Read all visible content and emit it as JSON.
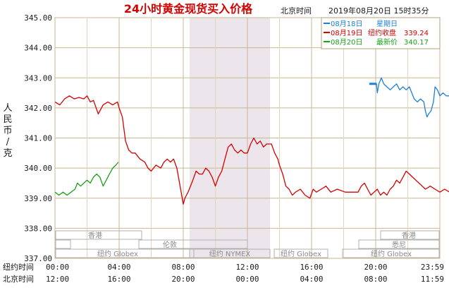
{
  "header": {
    "title": "24小时黄金现货买入价格",
    "location": "北京时间",
    "datetime": "2019年08月20日 15时35分"
  },
  "y_axis_label_chars": [
    "人",
    "民",
    "币",
    "/",
    "克"
  ],
  "legend": {
    "rows": [
      {
        "date_label": "08月18日",
        "info_label": "星期日",
        "value": "",
        "color": "#1e7fd6"
      },
      {
        "date_label": "08月19日",
        "info_label": "纽约收盘",
        "value": "339.24",
        "color": "#d40000"
      },
      {
        "date_label": "08月20日",
        "info_label": "最新价",
        "value": "340.17",
        "color": "#1aa01a"
      }
    ]
  },
  "time_rows": {
    "ny_label": "纽约时间",
    "bj_label": "北京时间",
    "ny_ticks": [
      "00:00",
      "04:00",
      "08:00",
      "12:00",
      "16:00",
      "20:00",
      "23:59"
    ],
    "bj_ticks": [
      "12:00",
      "16:00",
      "20:00",
      "00:00",
      "04:00",
      "08:00",
      "11:59"
    ]
  },
  "market_labels": {
    "hongkong_left": "香港",
    "hongkong_right": "香港",
    "london": "伦敦",
    "sydney": "悉尼",
    "globex_1": "纽约 Globex",
    "nymex": "纽约 NYMEX",
    "globex_2": "纽约 Globex",
    "globex_3": "纽约 Globex"
  },
  "chart_data": {
    "type": "line",
    "title": "24小时黄金现货买入价格",
    "ylabel": "人民币/克",
    "ylim": [
      337.0,
      345.0
    ],
    "yticks": [
      "345.00",
      "344.00",
      "343.00",
      "342.00",
      "341.00",
      "340.00",
      "339.00",
      "338.00",
      "337.00"
    ],
    "xlabel": "北京时间",
    "x_ticks_beijing": [
      "12:00",
      "16:00",
      "20:00",
      "00:00",
      "04:00",
      "08:00",
      "11:59"
    ],
    "grid": true,
    "x_units": "hours since 12:00 Beijing time",
    "series": [
      {
        "name": "08月18日",
        "color": "#1e7fd6",
        "points": [
          [
            19.6,
            342.8
          ],
          [
            20.05,
            342.8
          ],
          [
            20.1,
            342.5
          ],
          [
            20.2,
            342.8
          ],
          [
            20.35,
            343.0
          ],
          [
            20.5,
            342.8
          ],
          [
            20.7,
            342.7
          ],
          [
            20.9,
            342.6
          ],
          [
            21.1,
            342.7
          ],
          [
            21.3,
            342.8
          ],
          [
            21.5,
            342.6
          ],
          [
            21.7,
            342.7
          ],
          [
            21.9,
            342.6
          ],
          [
            22.1,
            342.7
          ],
          [
            22.4,
            342.3
          ],
          [
            22.6,
            342.2
          ],
          [
            22.8,
            342.3
          ],
          [
            23.0,
            342.2
          ],
          [
            23.1,
            341.9
          ],
          [
            23.2,
            341.7
          ],
          [
            23.3,
            341.8
          ],
          [
            23.45,
            341.9
          ],
          [
            23.6,
            342.2
          ],
          [
            23.7,
            342.7
          ],
          [
            23.85,
            342.6
          ],
          [
            24.0,
            342.4
          ],
          [
            24.2,
            342.5
          ],
          [
            24.4,
            342.4
          ],
          [
            24.6,
            342.4
          ],
          [
            24.8,
            342.3
          ],
          [
            25.0,
            342.3
          ],
          [
            25.2,
            342.2
          ]
        ]
      },
      {
        "name": "08月19日",
        "color": "#d40000",
        "points": [
          [
            0.0,
            342.2
          ],
          [
            0.3,
            342.1
          ],
          [
            0.6,
            342.3
          ],
          [
            0.9,
            342.4
          ],
          [
            1.2,
            342.3
          ],
          [
            1.5,
            342.35
          ],
          [
            1.8,
            342.3
          ],
          [
            2.0,
            342.4
          ],
          [
            2.2,
            342.2
          ],
          [
            2.4,
            342.25
          ],
          [
            2.7,
            341.8
          ],
          [
            3.0,
            342.1
          ],
          [
            3.3,
            342.2
          ],
          [
            3.6,
            342.1
          ],
          [
            3.9,
            342.2
          ],
          [
            4.0,
            342.0
          ],
          [
            4.2,
            341.7
          ],
          [
            4.4,
            340.9
          ],
          [
            4.6,
            340.6
          ],
          [
            4.8,
            340.5
          ],
          [
            5.0,
            340.5
          ],
          [
            5.3,
            340.3
          ],
          [
            5.6,
            340.2
          ],
          [
            5.8,
            340.0
          ],
          [
            6.0,
            339.9
          ],
          [
            6.3,
            340.1
          ],
          [
            6.6,
            340.0
          ],
          [
            6.8,
            340.2
          ],
          [
            7.0,
            340.3
          ],
          [
            7.2,
            340.2
          ],
          [
            7.4,
            340.3
          ],
          [
            7.6,
            340.0
          ],
          [
            7.8,
            339.4
          ],
          [
            8.0,
            338.8
          ],
          [
            8.1,
            339.0
          ],
          [
            8.3,
            339.2
          ],
          [
            8.6,
            339.6
          ],
          [
            8.8,
            339.9
          ],
          [
            9.0,
            339.8
          ],
          [
            9.2,
            339.8
          ],
          [
            9.4,
            340.0
          ],
          [
            9.6,
            339.9
          ],
          [
            9.8,
            339.7
          ],
          [
            10.0,
            339.4
          ],
          [
            10.2,
            339.7
          ],
          [
            10.4,
            339.9
          ],
          [
            10.6,
            340.3
          ],
          [
            10.8,
            340.7
          ],
          [
            11.0,
            340.8
          ],
          [
            11.2,
            340.6
          ],
          [
            11.4,
            340.5
          ],
          [
            11.6,
            340.6
          ],
          [
            11.8,
            340.5
          ],
          [
            12.0,
            340.5
          ],
          [
            12.2,
            340.8
          ],
          [
            12.4,
            341.0
          ],
          [
            12.6,
            340.8
          ],
          [
            12.8,
            340.9
          ],
          [
            13.0,
            340.7
          ],
          [
            13.2,
            340.8
          ],
          [
            13.5,
            340.8
          ],
          [
            13.7,
            340.5
          ],
          [
            13.9,
            340.3
          ],
          [
            14.0,
            340.1
          ],
          [
            14.2,
            339.8
          ],
          [
            14.4,
            339.4
          ],
          [
            14.6,
            339.3
          ],
          [
            14.8,
            339.1
          ],
          [
            15.0,
            339.2
          ],
          [
            15.3,
            339.3
          ],
          [
            15.6,
            339.1
          ],
          [
            15.9,
            339.0
          ],
          [
            16.1,
            339.3
          ],
          [
            16.3,
            339.2
          ],
          [
            16.6,
            339.3
          ],
          [
            16.9,
            339.4
          ],
          [
            17.2,
            339.2
          ],
          [
            17.6,
            339.3
          ],
          [
            18.1,
            339.2
          ],
          [
            18.9,
            339.2
          ],
          [
            19.1,
            339.4
          ],
          [
            19.3,
            339.5
          ],
          [
            19.5,
            339.3
          ],
          [
            19.7,
            339.1
          ],
          [
            19.9,
            339.2
          ],
          [
            20.1,
            339.3
          ],
          [
            20.3,
            339.1
          ],
          [
            20.5,
            339.2
          ],
          [
            20.7,
            339.1
          ],
          [
            20.9,
            339.3
          ],
          [
            21.1,
            339.4
          ],
          [
            21.3,
            339.6
          ],
          [
            21.5,
            339.5
          ],
          [
            21.7,
            339.7
          ],
          [
            21.9,
            339.9
          ],
          [
            22.1,
            339.8
          ],
          [
            22.3,
            339.7
          ],
          [
            22.5,
            339.6
          ],
          [
            22.7,
            339.5
          ],
          [
            22.9,
            339.4
          ],
          [
            23.1,
            339.3
          ],
          [
            23.4,
            339.4
          ],
          [
            23.7,
            339.3
          ],
          [
            24.0,
            339.2
          ],
          [
            24.3,
            339.3
          ],
          [
            24.6,
            339.2
          ],
          [
            24.9,
            339.1
          ]
        ]
      },
      {
        "name": "08月20日",
        "color": "#1aa01a",
        "points": [
          [
            0.0,
            339.2
          ],
          [
            0.25,
            339.1
          ],
          [
            0.5,
            339.2
          ],
          [
            0.75,
            339.1
          ],
          [
            1.0,
            339.2
          ],
          [
            1.25,
            339.3
          ],
          [
            1.4,
            339.5
          ],
          [
            1.6,
            339.4
          ],
          [
            1.8,
            339.5
          ],
          [
            2.0,
            339.6
          ],
          [
            2.2,
            339.5
          ],
          [
            2.4,
            339.7
          ],
          [
            2.6,
            339.8
          ],
          [
            2.8,
            339.7
          ],
          [
            3.0,
            339.4
          ],
          [
            3.2,
            339.6
          ],
          [
            3.4,
            339.8
          ],
          [
            3.6,
            340.0
          ],
          [
            3.8,
            340.1
          ],
          [
            3.95,
            340.2
          ]
        ]
      }
    ]
  }
}
